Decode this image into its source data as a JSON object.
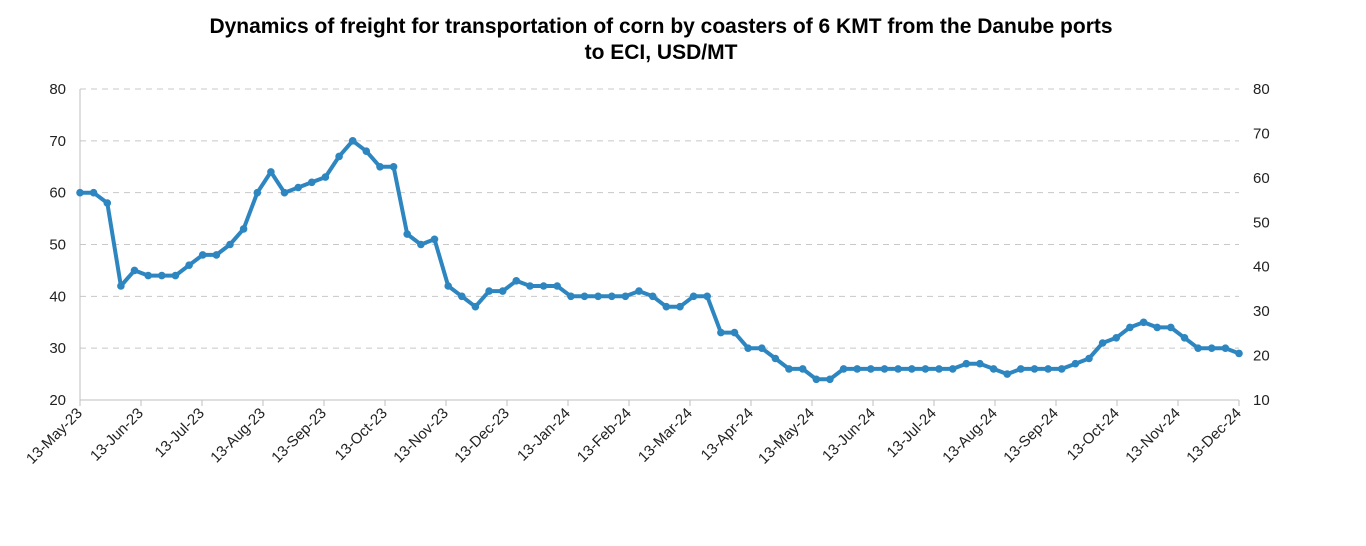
{
  "chart_data": {
    "type": "line",
    "title_line1": "Dynamics of freight for transportation of corn by coasters of 6 KMT from the Danube ports",
    "title_line2": "to ECI, USD/MT",
    "ylim": [
      20,
      80
    ],
    "y_ticks": [
      "20",
      "30",
      "40",
      "50",
      "60",
      "70",
      "80"
    ],
    "y2lim": [
      10,
      80
    ],
    "y2_ticks": [
      "10",
      "20",
      "30",
      "40",
      "50",
      "60",
      "70",
      "80"
    ],
    "x_ticks": [
      "13-May-23",
      "13-Jun-23",
      "13-Jul-23",
      "13-Aug-23",
      "13-Sep-23",
      "13-Oct-23",
      "13-Nov-23",
      "13-Dec-23",
      "13-Jan-24",
      "13-Feb-24",
      "13-Mar-24",
      "13-Apr-24",
      "13-May-24",
      "13-Jun-24",
      "13-Jul-24",
      "13-Aug-24",
      "13-Sep-24",
      "13-Oct-24",
      "13-Nov-24",
      "13-Dec-24"
    ],
    "grid": true,
    "series": [
      {
        "name": "Freight, USD/MT",
        "color": "#2e86c1",
        "values": [
          60,
          60,
          58,
          42,
          45,
          44,
          44,
          44,
          46,
          48,
          48,
          50,
          53,
          60,
          64,
          60,
          61,
          62,
          63,
          67,
          70,
          68,
          65,
          65,
          52,
          50,
          51,
          42,
          40,
          38,
          41,
          41,
          43,
          42,
          42,
          42,
          40,
          40,
          40,
          40,
          40,
          41,
          40,
          38,
          38,
          40,
          40,
          33,
          33,
          30,
          30,
          28,
          26,
          26,
          24,
          24,
          26,
          26,
          26,
          26,
          26,
          26,
          26,
          26,
          26,
          27,
          27,
          26,
          25,
          26,
          26,
          26,
          26,
          27,
          28,
          31,
          32,
          34,
          35,
          34,
          34,
          32,
          30,
          30,
          30,
          29
        ]
      }
    ]
  }
}
